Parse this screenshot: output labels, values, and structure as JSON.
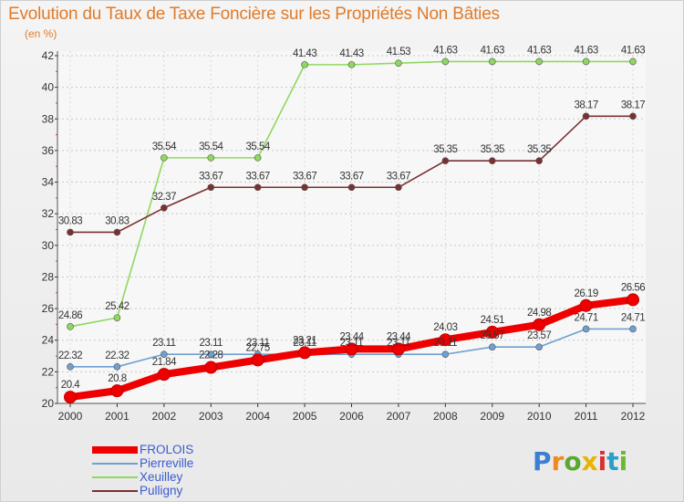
{
  "chart_data": {
    "type": "line",
    "title": "Evolution du Taux de Taxe Foncière sur les Propriétés Non Bâties",
    "ylabel": "(en %)",
    "xlabel": "",
    "ylim": [
      20,
      42
    ],
    "yticks": [
      20,
      22,
      24,
      26,
      28,
      30,
      32,
      34,
      36,
      38,
      40,
      42
    ],
    "x": [
      "2000",
      "2001",
      "2002",
      "2003",
      "2004",
      "2005",
      "2006",
      "2007",
      "2008",
      "2009",
      "2010",
      "2011",
      "2012"
    ],
    "grid": "horizontal dashed",
    "legend_position": "bottom-left",
    "series": [
      {
        "name": "FROLOIS",
        "color": "#ee0000",
        "values": [
          20.4,
          20.8,
          21.84,
          22.28,
          22.75,
          23.21,
          23.44,
          23.44,
          24.03,
          24.51,
          24.98,
          26.19,
          26.56
        ],
        "labels": [
          "20.4",
          "20.8",
          "21.84",
          "22.28",
          "22.75",
          "23.21",
          "23.44",
          "23.44",
          "24.03",
          "24.51",
          "24.98",
          "26.19",
          "26.56"
        ]
      },
      {
        "name": "Pierreville",
        "color": "#6fa0d0",
        "values": [
          22.32,
          22.32,
          23.11,
          23.11,
          23.11,
          23.11,
          23.11,
          23.11,
          23.11,
          23.57,
          23.57,
          24.71,
          24.71
        ],
        "labels": [
          "22.32",
          "22.32",
          "23.11",
          "23.11",
          "23.11",
          "23.11",
          "23.11",
          "23.11",
          "23.11",
          "23.57",
          "23.57",
          "24.71",
          "24.71"
        ]
      },
      {
        "name": "Xeuilley",
        "color": "#8fd860",
        "values": [
          24.86,
          25.42,
          35.54,
          35.54,
          35.54,
          41.43,
          41.43,
          41.53,
          41.63,
          41.63,
          41.63,
          41.63,
          41.63
        ],
        "labels": [
          "24.86",
          "25.42",
          "35.54",
          "35.54",
          "35.54",
          "41.43",
          "41.43",
          "41.53",
          "41.63",
          "41.63",
          "41.63",
          "41.63",
          "41.63"
        ]
      },
      {
        "name": "Pulligny",
        "color": "#7a3030",
        "values": [
          30.83,
          30.83,
          32.37,
          33.67,
          33.67,
          33.67,
          33.67,
          33.67,
          35.35,
          35.35,
          35.35,
          38.17,
          38.17
        ],
        "labels": [
          "30.83",
          "30.83",
          "32.37",
          "33.67",
          "33.67",
          "33.67",
          "33.67",
          "33.67",
          "35.35",
          "35.35",
          "35.35",
          "38.17",
          "38.17"
        ]
      }
    ]
  },
  "logo": {
    "text": "Proxiti",
    "letter_colors": [
      "#3b7fd0",
      "#f08a1c",
      "#5aa830",
      "#e8b400",
      "#d83030",
      "#2aa0c8",
      "#6cb830"
    ]
  }
}
